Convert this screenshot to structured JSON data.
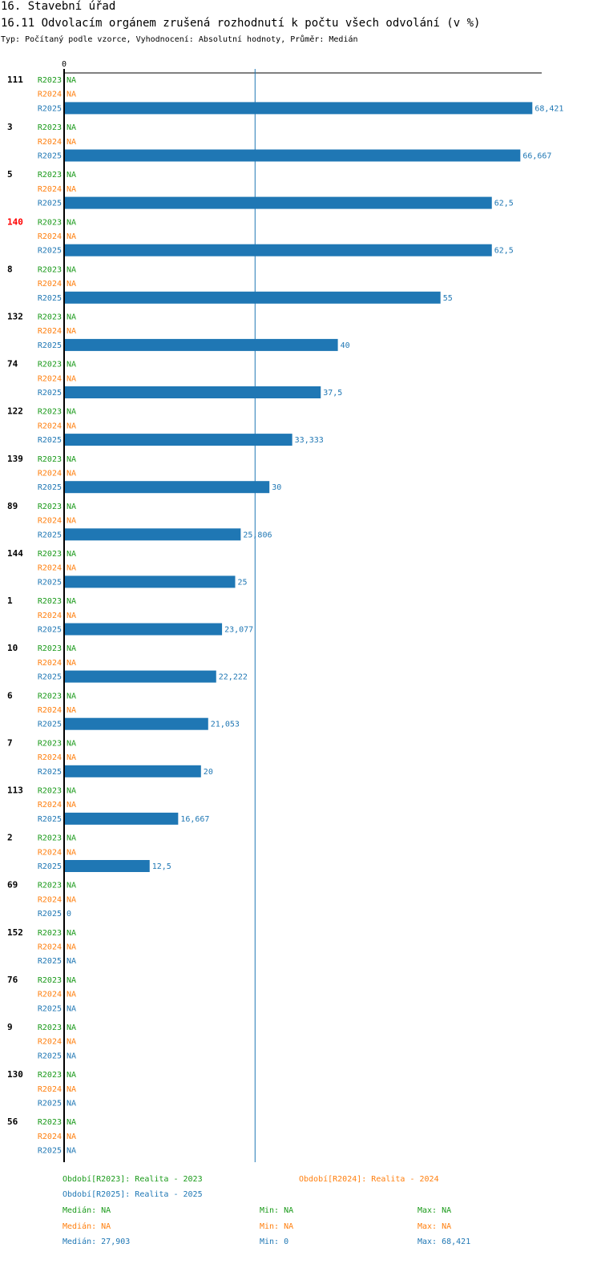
{
  "header": {
    "section": "16. Stavební úřad",
    "indicator": "16.11 Odvolacím orgánem zrušená rozhodnutí k počtu všech odvolání (v %)",
    "meta": "Typ: Počítaný podle vzorce, Vyhodnocení: Absolutní hodnoty, Průměr: Medián"
  },
  "colors": {
    "R2023": "#1a9a1a",
    "R2024": "#ff7f0e",
    "R2025": "#1f77b4",
    "highlight": "#ff0000",
    "axis": "#000000"
  },
  "chart_data": {
    "type": "bar",
    "orientation": "horizontal",
    "x_tick_labels": [
      "0"
    ],
    "xlim": [
      0,
      68.421
    ],
    "reference_line": {
      "label": "Medián",
      "value": 27.903
    },
    "series_names": [
      "R2023",
      "R2024",
      "R2025"
    ],
    "na_label": "NA",
    "highlighted_category": "140",
    "groups": [
      {
        "category": "111",
        "values": [
          null,
          null,
          68.421
        ],
        "labels": [
          "NA",
          "NA",
          "68,421"
        ]
      },
      {
        "category": "3",
        "values": [
          null,
          null,
          66.667
        ],
        "labels": [
          "NA",
          "NA",
          "66,667"
        ]
      },
      {
        "category": "5",
        "values": [
          null,
          null,
          62.5
        ],
        "labels": [
          "NA",
          "NA",
          "62,5"
        ]
      },
      {
        "category": "140",
        "values": [
          null,
          null,
          62.5
        ],
        "labels": [
          "NA",
          "NA",
          "62,5"
        ]
      },
      {
        "category": "8",
        "values": [
          null,
          null,
          55
        ],
        "labels": [
          "NA",
          "NA",
          "55"
        ]
      },
      {
        "category": "132",
        "values": [
          null,
          null,
          40
        ],
        "labels": [
          "NA",
          "NA",
          "40"
        ]
      },
      {
        "category": "74",
        "values": [
          null,
          null,
          37.5
        ],
        "labels": [
          "NA",
          "NA",
          "37,5"
        ]
      },
      {
        "category": "122",
        "values": [
          null,
          null,
          33.333
        ],
        "labels": [
          "NA",
          "NA",
          "33,333"
        ]
      },
      {
        "category": "139",
        "values": [
          null,
          null,
          30
        ],
        "labels": [
          "NA",
          "NA",
          "30"
        ]
      },
      {
        "category": "89",
        "values": [
          null,
          null,
          25.806
        ],
        "labels": [
          "NA",
          "NA",
          "25,806"
        ]
      },
      {
        "category": "144",
        "values": [
          null,
          null,
          25
        ],
        "labels": [
          "NA",
          "NA",
          "25"
        ]
      },
      {
        "category": "1",
        "values": [
          null,
          null,
          23.077
        ],
        "labels": [
          "NA",
          "NA",
          "23,077"
        ]
      },
      {
        "category": "10",
        "values": [
          null,
          null,
          22.222
        ],
        "labels": [
          "NA",
          "NA",
          "22,222"
        ]
      },
      {
        "category": "6",
        "values": [
          null,
          null,
          21.053
        ],
        "labels": [
          "NA",
          "NA",
          "21,053"
        ]
      },
      {
        "category": "7",
        "values": [
          null,
          null,
          20
        ],
        "labels": [
          "NA",
          "NA",
          "20"
        ]
      },
      {
        "category": "113",
        "values": [
          null,
          null,
          16.667
        ],
        "labels": [
          "NA",
          "NA",
          "16,667"
        ]
      },
      {
        "category": "2",
        "values": [
          null,
          null,
          12.5
        ],
        "labels": [
          "NA",
          "NA",
          "12,5"
        ]
      },
      {
        "category": "69",
        "values": [
          null,
          null,
          0
        ],
        "labels": [
          "NA",
          "NA",
          "0"
        ]
      },
      {
        "category": "152",
        "values": [
          null,
          null,
          null
        ],
        "labels": [
          "NA",
          "NA",
          "NA"
        ]
      },
      {
        "category": "76",
        "values": [
          null,
          null,
          null
        ],
        "labels": [
          "NA",
          "NA",
          "NA"
        ]
      },
      {
        "category": "9",
        "values": [
          null,
          null,
          null
        ],
        "labels": [
          "NA",
          "NA",
          "NA"
        ]
      },
      {
        "category": "130",
        "values": [
          null,
          null,
          null
        ],
        "labels": [
          "NA",
          "NA",
          "NA"
        ]
      },
      {
        "category": "56",
        "values": [
          null,
          null,
          null
        ],
        "labels": [
          "NA",
          "NA",
          "NA"
        ]
      }
    ]
  },
  "legend": {
    "periods": {
      "r2023": "Období[R2023]: Realita - 2023",
      "r2024": "Období[R2024]: Realita - 2024",
      "r2025": "Období[R2025]: Realita - 2025"
    },
    "stats": {
      "r2023": {
        "median": "Medián: NA",
        "min": "Min: NA",
        "max": "Max: NA"
      },
      "r2024": {
        "median": "Medián: NA",
        "min": "Min: NA",
        "max": "Max: NA"
      },
      "r2025": {
        "median": "Medián: 27,903",
        "min": "Min: 0",
        "max": "Max: 68,421"
      }
    }
  }
}
